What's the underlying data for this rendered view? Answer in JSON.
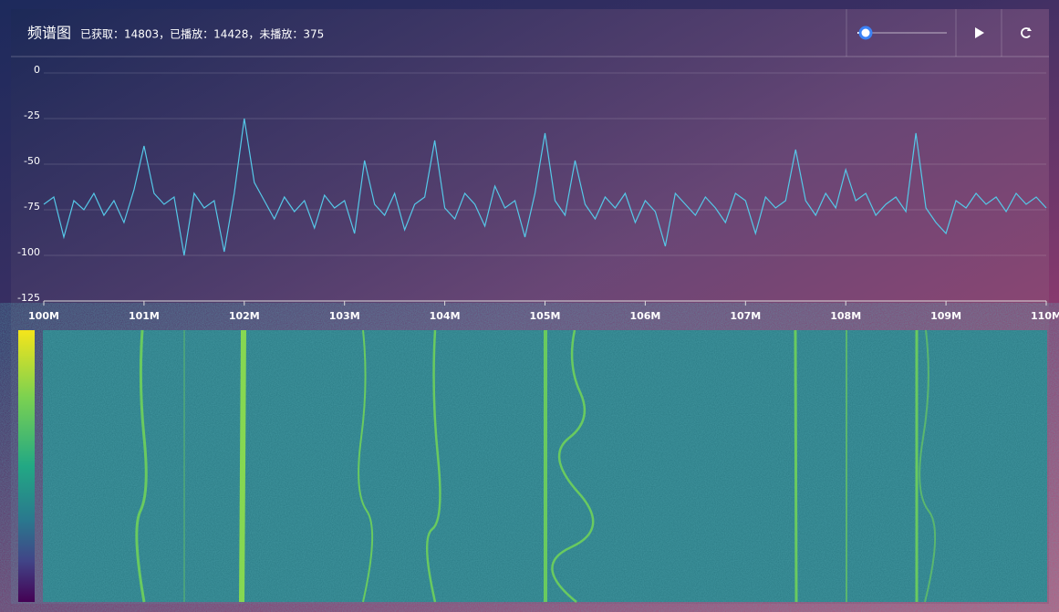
{
  "header": {
    "title": "频谱图",
    "status": "已获取：14803，已播放：14428，未播放：375"
  },
  "chart_data": {
    "type": "line",
    "x": [
      100.0,
      100.1,
      100.2,
      100.3,
      100.4,
      100.5,
      100.6,
      100.7,
      100.8,
      100.9,
      101.0,
      101.1,
      101.2,
      101.3,
      101.4,
      101.5,
      101.6,
      101.7,
      101.8,
      101.9,
      102.0,
      102.1,
      102.2,
      102.3,
      102.4,
      102.5,
      102.6,
      102.7,
      102.8,
      102.9,
      103.0,
      103.1,
      103.2,
      103.3,
      103.4,
      103.5,
      103.6,
      103.7,
      103.8,
      103.9,
      104.0,
      104.1,
      104.2,
      104.3,
      104.4,
      104.5,
      104.6,
      104.7,
      104.8,
      104.9,
      105.0,
      105.1,
      105.2,
      105.3,
      105.4,
      105.5,
      105.6,
      105.7,
      105.8,
      105.9,
      106.0,
      106.1,
      106.2,
      106.3,
      106.4,
      106.5,
      106.6,
      106.7,
      106.8,
      106.9,
      107.0,
      107.1,
      107.2,
      107.3,
      107.4,
      107.5,
      107.6,
      107.7,
      107.8,
      107.9,
      108.0,
      108.1,
      108.2,
      108.3,
      108.4,
      108.5,
      108.6,
      108.7,
      108.8,
      108.9,
      109.0,
      109.1,
      109.2,
      109.3,
      109.4,
      109.5,
      109.6,
      109.7,
      109.8,
      109.9,
      110.0
    ],
    "values": [
      -72,
      -68,
      -90,
      -70,
      -75,
      -66,
      -78,
      -70,
      -82,
      -64,
      -40,
      -66,
      -72,
      -68,
      -100,
      -66,
      -74,
      -70,
      -98,
      -66,
      -25,
      -60,
      -70,
      -80,
      -68,
      -76,
      -70,
      -85,
      -67,
      -74,
      -70,
      -88,
      -48,
      -72,
      -78,
      -66,
      -86,
      -72,
      -68,
      -37,
      -74,
      -80,
      -66,
      -72,
      -84,
      -62,
      -74,
      -70,
      -90,
      -66,
      -33,
      -70,
      -78,
      -48,
      -72,
      -80,
      -68,
      -74,
      -66,
      -82,
      -70,
      -76,
      -95,
      -66,
      -72,
      -78,
      -68,
      -74,
      -82,
      -66,
      -70,
      -88,
      -68,
      -74,
      -70,
      -42,
      -70,
      -78,
      -66,
      -74,
      -53,
      -70,
      -66,
      -78,
      -72,
      -68,
      -76,
      -33,
      -74,
      -82,
      -88,
      -70,
      -74,
      -66,
      -72,
      -68,
      -76,
      -66,
      -72,
      -68,
      -74
    ],
    "color": "#55c8e8",
    "xlim": [
      100,
      110
    ],
    "xticks": [
      {
        "value": 100,
        "label": "100M"
      },
      {
        "value": 101,
        "label": "101M"
      },
      {
        "value": 102,
        "label": "102M"
      },
      {
        "value": 103,
        "label": "103M"
      },
      {
        "value": 104,
        "label": "104M"
      },
      {
        "value": 105,
        "label": "105M"
      },
      {
        "value": 106,
        "label": "106M"
      },
      {
        "value": 107,
        "label": "107M"
      },
      {
        "value": 108,
        "label": "108M"
      },
      {
        "value": 109,
        "label": "109M"
      },
      {
        "value": 110,
        "label": "110M"
      }
    ],
    "ylim": [
      -125,
      0
    ],
    "yticks": [
      0,
      -25,
      -50,
      -75,
      -100,
      -125
    ],
    "grid": true
  }
}
